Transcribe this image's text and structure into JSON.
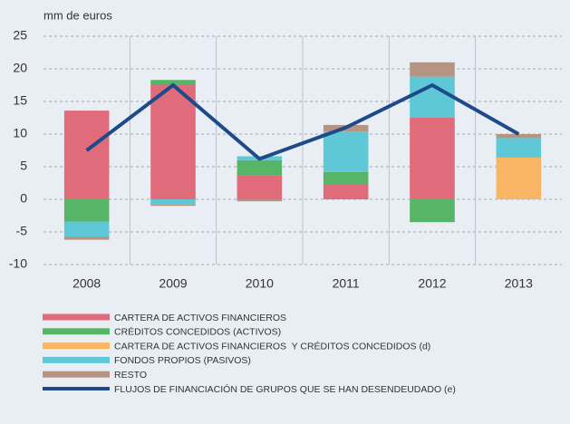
{
  "chart_data": {
    "type": "bar",
    "stacked": true,
    "y_label": "mm de euros",
    "categories": [
      "2008",
      "2009",
      "2010",
      "2011",
      "2012",
      "2013"
    ],
    "series": [
      {
        "name": "CARTERA DE ACTIVOS FINANCIEROS",
        "color": "#e06b7b",
        "values": [
          13.6,
          17.5,
          3.7,
          2.3,
          12.5,
          null
        ]
      },
      {
        "name": "CRÉDITOS CONCEDIDOS (ACTIVOS)",
        "color": "#58b466",
        "values": [
          -3.4,
          0.8,
          2.3,
          1.9,
          -3.5,
          null
        ]
      },
      {
        "name": "CARTERA DE ACTIVOS FINANCIEROS  Y CRÉDITOS CONCEDIDOS (d)",
        "color": "#f8b664",
        "values": [
          null,
          null,
          null,
          null,
          null,
          6.4
        ]
      },
      {
        "name": "FONDOS PROPIOS (PASIVOS)",
        "color": "#5ec8d6",
        "values": [
          -2.3,
          -0.8,
          0.6,
          6.2,
          6.3,
          3.0
        ]
      },
      {
        "name": "RESTO",
        "color": "#b59582",
        "values": [
          -0.5,
          -0.2,
          -0.3,
          1.0,
          2.2,
          0.6
        ]
      },
      {
        "name": "FLUJOS DE FINANCIACIÓN DE GRUPOS QUE SE HAN DESENDEUDADO (e)",
        "color": "#1f4a8a",
        "type": "line",
        "values": [
          7.5,
          17.5,
          6.2,
          11.0,
          17.5,
          10.0
        ]
      }
    ],
    "ylim": [
      -10,
      25
    ],
    "yticks": [
      -10,
      -5,
      0,
      5,
      10,
      15,
      20,
      25
    ],
    "grid": true
  }
}
